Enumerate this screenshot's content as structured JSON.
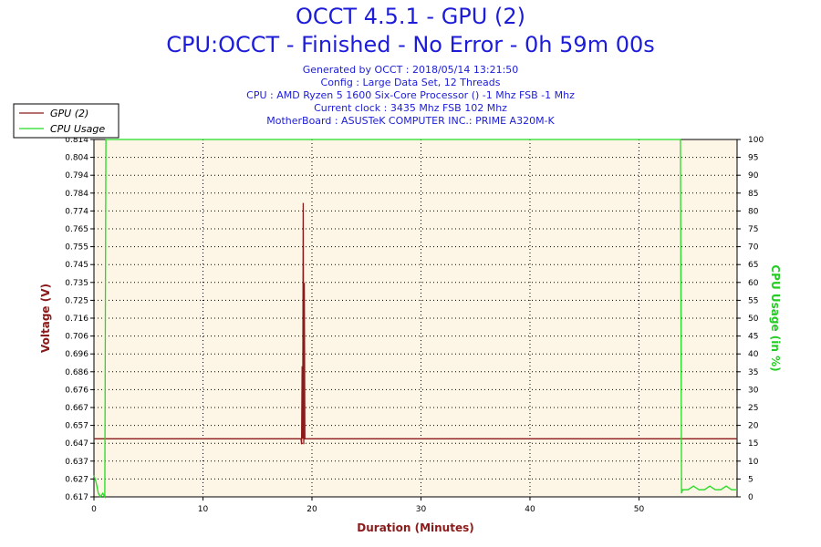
{
  "header": {
    "title": "OCCT 4.5.1 - GPU (2)",
    "subtitle": "CPU:OCCT - Finished - No Error - 0h 59m 00s",
    "info": [
      "Generated by OCCT : 2018/05/14 13:21:50",
      "Config : Large Data Set, 12 Threads",
      "CPU : AMD Ryzen 5 1600 Six-Core Processor () -1 Mhz FSB -1 Mhz",
      "Current clock : 3435 Mhz FSB 102 Mhz",
      "MotherBoard : ASUSTeK COMPUTER INC.: PRIME A320M-K"
    ]
  },
  "chart_data": {
    "type": "line",
    "xlabel": "Duration (Minutes)",
    "ylabel_left": "Voltage (V)",
    "ylabel_right": "CPU Usage (in %)",
    "xlim": [
      0,
      59
    ],
    "x_ticks": [
      "0",
      "10",
      "20",
      "30",
      "40",
      "50"
    ],
    "x_tick_values": [
      0,
      10,
      20,
      30,
      40,
      50
    ],
    "ylim_left": [
      0.617,
      0.814
    ],
    "y_left_ticks": [
      "0.617",
      "0.627",
      "0.637",
      "0.647",
      "0.657",
      "0.667",
      "0.676",
      "0.686",
      "0.696",
      "0.706",
      "0.716",
      "0.725",
      "0.735",
      "0.745",
      "0.755",
      "0.765",
      "0.774",
      "0.784",
      "0.794",
      "0.804",
      "0.814"
    ],
    "ylim_right": [
      0,
      100
    ],
    "y_right_ticks": [
      "0",
      "5",
      "10",
      "15",
      "20",
      "25",
      "30",
      "35",
      "40",
      "45",
      "50",
      "55",
      "60",
      "65",
      "70",
      "75",
      "80",
      "85",
      "90",
      "95",
      "100"
    ],
    "plot_background": "#fdf5e6",
    "grid": "dotted",
    "legend_position": "top-left",
    "series": [
      {
        "name": "GPU (2)",
        "axis": "left",
        "color": "#8b1a1a",
        "x": [
          0,
          19.0,
          19.05,
          19.1,
          19.15,
          19.2,
          19.25,
          19.3,
          19.35,
          19.4,
          59
        ],
        "y": [
          0.649,
          0.649,
          0.646,
          0.689,
          0.649,
          0.779,
          0.646,
          0.735,
          0.649,
          0.649,
          0.649
        ]
      },
      {
        "name": "CPU Usage",
        "axis": "right",
        "color": "#22dd22",
        "x": [
          0,
          0.2,
          0.4,
          0.6,
          0.8,
          1.0,
          1.05,
          1.1,
          1.2,
          53.8,
          53.85,
          53.9,
          54.0,
          54.5,
          55,
          55.5,
          56,
          56.5,
          57,
          57.5,
          58,
          58.5,
          59
        ],
        "y": [
          6,
          4,
          1,
          0,
          1,
          0,
          50,
          100,
          100,
          100,
          50,
          1,
          2,
          2,
          3,
          2,
          2,
          3,
          2,
          2,
          3,
          2,
          2
        ]
      }
    ]
  }
}
